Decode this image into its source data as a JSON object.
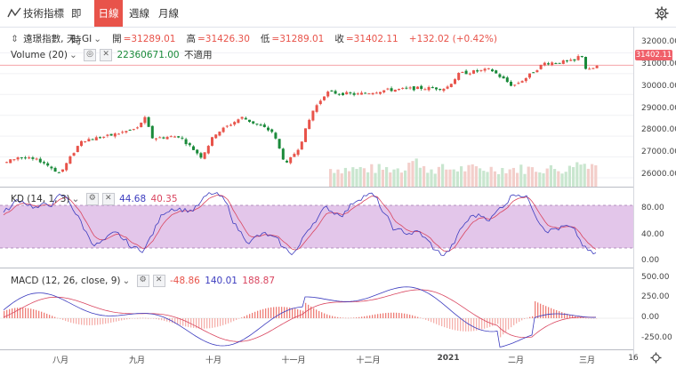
{
  "toolbar": {
    "indicator_label": "技術指標",
    "intervals": [
      {
        "label": "即時",
        "active": false
      },
      {
        "label": "日線",
        "active": true
      },
      {
        "label": "週線",
        "active": false
      },
      {
        "label": "月線",
        "active": false
      }
    ]
  },
  "main_legend": {
    "symbol": "遠璟指數, 天, GI",
    "open_label": "開",
    "open": "=31289.01",
    "high_label": "高",
    "high": "=31426.30",
    "low_label": "低",
    "low": "=31289.01",
    "close_label": "收",
    "close": "=31402.11",
    "change": "+132.02 (+0.42%)"
  },
  "volume_legend": {
    "label": "Volume (20)",
    "value": "22360671.00",
    "na": "不適用"
  },
  "kd_legend": {
    "label": "KD (14, 1, 3)",
    "k": "44.68",
    "d": "40.35"
  },
  "macd_legend": {
    "label": "MACD (12, 26, close, 9)",
    "hist": "-48.86",
    "macd": "140.01",
    "signal": "188.87"
  },
  "price_axis": {
    "ticks": [
      "32000.00",
      "31000.00",
      "30000.00",
      "29000.00",
      "28000.00",
      "27000.00",
      "26000.00"
    ],
    "last_price": "31402.11"
  },
  "kd_axis": {
    "ticks": [
      "80.00",
      "40.00",
      "0.00"
    ]
  },
  "macd_axis": {
    "ticks": [
      "500.00",
      "250.00",
      "0.00",
      "-250.00"
    ]
  },
  "date_axis": {
    "labels": [
      "八月",
      "九月",
      "十月",
      "十一月",
      "十二月",
      "2021",
      "二月",
      "三月",
      "16"
    ]
  },
  "colors": {
    "up": "#e8534a",
    "down": "#1a8a3a",
    "accent": "#e8534a",
    "k_line": "#3c3cbf",
    "d_line": "#d9455f",
    "kd_band": "#d9b3e3"
  },
  "icons": [
    "indicator-icon",
    "settings-icon",
    "collapse-icon",
    "visibility-icon",
    "close-icon",
    "settings-icon"
  ]
}
